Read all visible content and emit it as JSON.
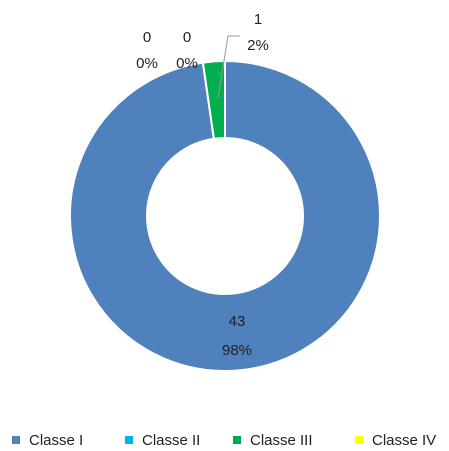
{
  "chart_data": {
    "type": "donut",
    "categories": [
      "Classe I",
      "Classe II",
      "Classe III",
      "Classe IV"
    ],
    "values": [
      43,
      0,
      1,
      0
    ],
    "percent_labels": [
      "98%",
      "0%",
      "2%",
      "0%"
    ],
    "colors": [
      "#4f81bd",
      "#00b0f0",
      "#00b050",
      "#ffff00"
    ],
    "legend": "bottom"
  }
}
